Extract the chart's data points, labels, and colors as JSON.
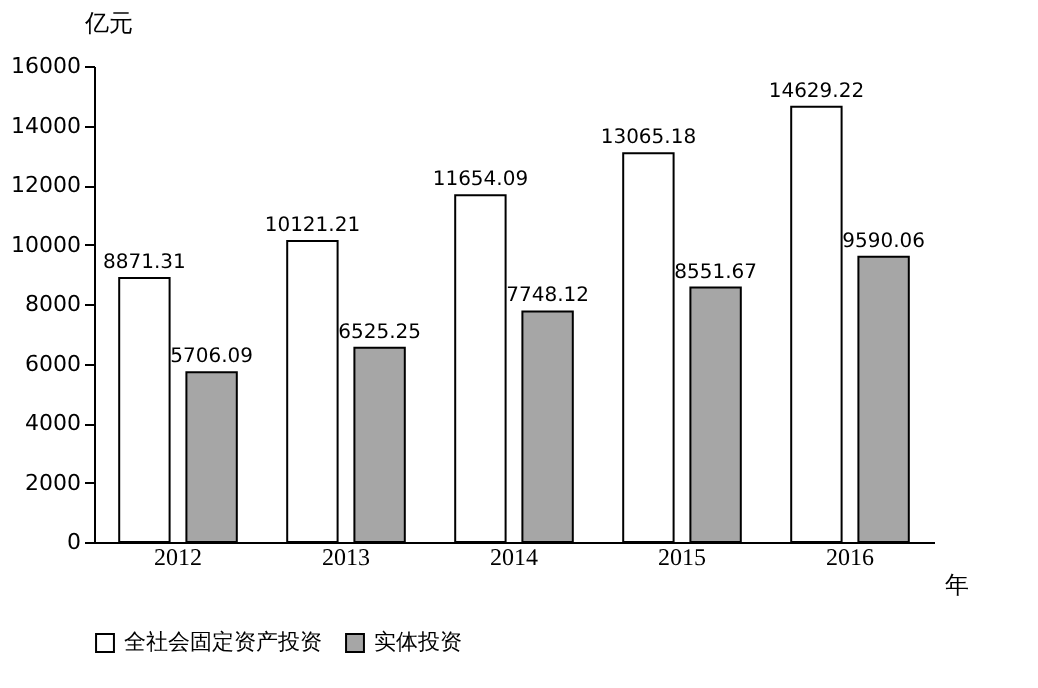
{
  "chart_data": {
    "type": "bar",
    "ylabel": "亿元",
    "xlabel": "年",
    "categories": [
      "2012",
      "2013",
      "2014",
      "2015",
      "2016"
    ],
    "series": [
      {
        "name": "全社会固定资产投资",
        "color": "#ffffff",
        "values": [
          8871.31,
          10121.21,
          11654.09,
          13065.18,
          14629.22
        ]
      },
      {
        "name": "实体投资",
        "color": "#a6a6a6",
        "values": [
          5706.09,
          6525.25,
          7748.12,
          8551.67,
          9590.06
        ]
      }
    ],
    "ylim": [
      0,
      16000
    ],
    "yticks": [
      0,
      2000,
      4000,
      6000,
      8000,
      10000,
      12000,
      14000,
      16000
    ],
    "grid": false,
    "legend": "bottom",
    "data_labels": true
  }
}
